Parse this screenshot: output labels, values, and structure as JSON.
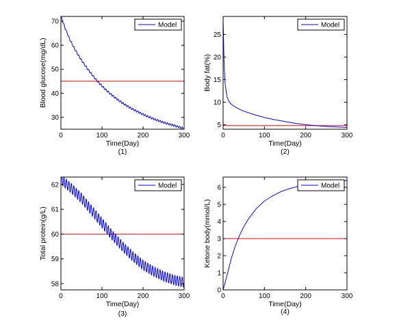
{
  "chart_data": [
    {
      "type": "line",
      "caption": "(1)",
      "xlabel": "Time(Day)",
      "ylabel": "Blood glucose(mg/dL)",
      "xlim": [
        0,
        300
      ],
      "ylim": [
        25,
        72
      ],
      "xticks": [
        0,
        100,
        200,
        300
      ],
      "yticks": [
        30,
        40,
        50,
        60,
        70
      ],
      "legend": {
        "label": "Model",
        "position": "top-right"
      },
      "series": [
        {
          "name": "Model",
          "color": "#0000ff",
          "oscillation_amplitude": 0.4,
          "oscillation_period_days": 6,
          "x": [
            0,
            10,
            20,
            30,
            40,
            50,
            60,
            70,
            80,
            90,
            100,
            110,
            120,
            130,
            140,
            150,
            160,
            170,
            180,
            190,
            200,
            210,
            220,
            230,
            240,
            250,
            260,
            270,
            280,
            290,
            300
          ],
          "y": [
            72.0,
            67.2,
            63.0,
            59.5,
            56.5,
            53.8,
            51.3,
            49.0,
            46.8,
            44.8,
            43.0,
            41.3,
            39.8,
            38.4,
            37.1,
            35.9,
            34.8,
            33.8,
            32.9,
            32.0,
            31.2,
            30.4,
            29.7,
            29.0,
            28.4,
            27.8,
            27.3,
            26.8,
            26.3,
            25.8,
            25.3
          ]
        }
      ],
      "reference_line": {
        "y": 45,
        "color": "#ff0000"
      }
    },
    {
      "type": "line",
      "caption": "(2)",
      "xlabel": "Time(Day)",
      "ylabel": "Body fat(%)",
      "xlim": [
        0,
        300
      ],
      "ylim": [
        4,
        29
      ],
      "xticks": [
        0,
        100,
        200,
        300
      ],
      "yticks": [
        5,
        10,
        15,
        20,
        25
      ],
      "legend": {
        "label": "Model",
        "position": "top-right"
      },
      "series": [
        {
          "name": "Model",
          "color": "#0000ff",
          "oscillation_amplitude": 0,
          "oscillation_period_days": 6,
          "x": [
            0,
            1,
            2,
            3,
            5,
            8,
            10,
            15,
            20,
            25,
            30,
            40,
            50,
            60,
            80,
            100,
            125,
            150,
            175,
            200,
            225,
            250,
            275,
            300
          ],
          "y": [
            28.5,
            24.0,
            20.0,
            17.2,
            14.0,
            12.0,
            11.0,
            10.0,
            9.5,
            9.2,
            8.9,
            8.4,
            8.0,
            7.7,
            7.1,
            6.6,
            6.1,
            5.7,
            5.3,
            5.0,
            4.8,
            4.6,
            4.5,
            4.4
          ]
        }
      ],
      "reference_line": {
        "y": 4.8,
        "color": "#ff0000"
      }
    },
    {
      "type": "line",
      "caption": "(3)",
      "xlabel": "Time(Day)",
      "ylabel": "Total protein(g/L)",
      "xlim": [
        0,
        300
      ],
      "ylim": [
        57.75,
        62.3
      ],
      "xticks": [
        0,
        100,
        200,
        300
      ],
      "yticks": [
        58,
        59,
        60,
        61,
        62
      ],
      "legend": {
        "label": "Model",
        "position": "top-right"
      },
      "series": [
        {
          "name": "Model",
          "color": "#0000ff",
          "oscillation_amplitude": 0.2,
          "oscillation_period_days": 6,
          "x": [
            0,
            25,
            50,
            75,
            100,
            125,
            150,
            175,
            200,
            225,
            250,
            275,
            300
          ],
          "y": [
            62.2,
            61.85,
            61.45,
            60.95,
            60.45,
            59.95,
            59.5,
            59.1,
            58.75,
            58.5,
            58.3,
            58.15,
            58.05
          ]
        }
      ],
      "reference_line": {
        "y": 60,
        "color": "#ff0000"
      }
    },
    {
      "type": "line",
      "caption": "(4)",
      "xlabel": "Time(Day)",
      "ylabel": "Ketone body(mmol/L)",
      "xlim": [
        0,
        300
      ],
      "ylim": [
        0,
        6.6
      ],
      "xticks": [
        0,
        100,
        200,
        300
      ],
      "yticks": [
        0,
        1,
        2,
        3,
        4,
        5,
        6
      ],
      "legend": {
        "label": "Model",
        "position": "top-right"
      },
      "series": [
        {
          "name": "Model",
          "color": "#0000ff",
          "oscillation_amplitude": 0,
          "oscillation_period_days": 6,
          "x": [
            0,
            10,
            20,
            30,
            40,
            50,
            60,
            80,
            100,
            120,
            140,
            160,
            180,
            200,
            225,
            250,
            275,
            300
          ],
          "y": [
            0.0,
            0.9,
            1.85,
            2.6,
            3.2,
            3.7,
            4.1,
            4.75,
            5.2,
            5.5,
            5.75,
            5.92,
            6.05,
            6.15,
            6.25,
            6.32,
            6.37,
            6.4
          ]
        }
      ],
      "reference_line": {
        "y": 3,
        "color": "#ff0000"
      }
    }
  ]
}
